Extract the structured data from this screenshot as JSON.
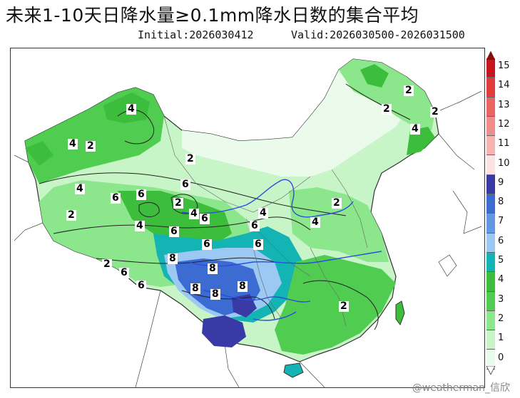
{
  "title": "未来1-10天日降水量≥0.1mm降水日数的集合平均",
  "initial": "Initial:2026030412",
  "valid": "Valid:2026030500-2026031500",
  "watermark": "@weatherman_信欣",
  "colorbar": {
    "ticks": [
      "15",
      "14",
      "13",
      "12",
      "11",
      "10",
      "9",
      "8",
      "7",
      "6",
      "5",
      "4",
      "3",
      "2",
      "1",
      "0"
    ],
    "colors": [
      "#c8141e",
      "#e03c3c",
      "#ea6464",
      "#f08c8c",
      "#f8b4b4",
      "#fde2e2",
      "#3a3aa6",
      "#3c6cd2",
      "#6496e6",
      "#9cc8f4",
      "#14b4b4",
      "#3cbe3c",
      "#50cc50",
      "#8ce68c",
      "#c8f5c8",
      "#ebfbeb"
    ]
  },
  "contour_labels": [
    {
      "text": "4"
    },
    {
      "text": "2"
    },
    {
      "text": "4"
    },
    {
      "text": "2"
    },
    {
      "text": "4"
    },
    {
      "text": "6"
    },
    {
      "text": "6"
    },
    {
      "text": "6"
    },
    {
      "text": "2"
    },
    {
      "text": "4"
    },
    {
      "text": "6"
    },
    {
      "text": "2"
    },
    {
      "text": "4"
    },
    {
      "text": "6"
    },
    {
      "text": "6"
    },
    {
      "text": "4"
    },
    {
      "text": "6"
    },
    {
      "text": "6"
    },
    {
      "text": "8"
    },
    {
      "text": "8"
    },
    {
      "text": "2"
    },
    {
      "text": "6"
    },
    {
      "text": "6"
    },
    {
      "text": "8"
    },
    {
      "text": "8"
    },
    {
      "text": "8"
    },
    {
      "text": "2"
    },
    {
      "text": "2"
    },
    {
      "text": "4"
    },
    {
      "text": "2"
    },
    {
      "text": "2"
    },
    {
      "text": "4"
    },
    {
      "text": "2"
    }
  ]
}
